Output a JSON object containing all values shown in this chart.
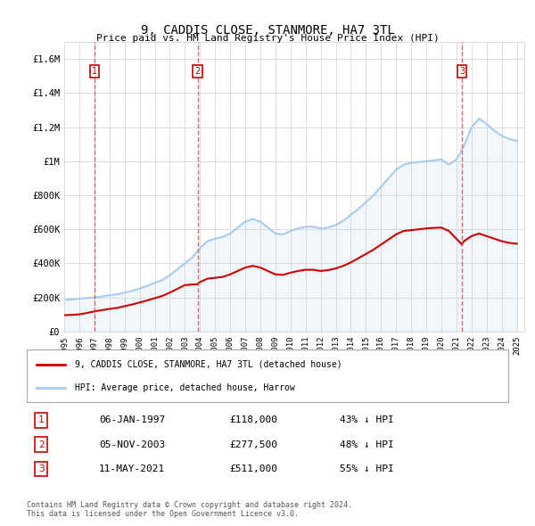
{
  "title": "9, CADDIS CLOSE, STANMORE, HA7 3TL",
  "subtitle": "Price paid vs. HM Land Registry's House Price Index (HPI)",
  "legend_line1": "9, CADDIS CLOSE, STANMORE, HA7 3TL (detached house)",
  "legend_line2": "HPI: Average price, detached house, Harrow",
  "footer1": "Contains HM Land Registry data © Crown copyright and database right 2024.",
  "footer2": "This data is licensed under the Open Government Licence v3.0.",
  "sales": [
    {
      "num": 1,
      "date": "06-JAN-1997",
      "price": 118000,
      "pct": "43%",
      "x_year": 1997.02
    },
    {
      "num": 2,
      "date": "05-NOV-2003",
      "price": 277500,
      "pct": "48%",
      "x_year": 2003.84
    },
    {
      "num": 3,
      "date": "11-MAY-2021",
      "price": 511000,
      "pct": "55%",
      "x_year": 2021.36
    }
  ],
  "xlim": [
    1995.0,
    2025.5
  ],
  "ylim": [
    0,
    1700000
  ],
  "yticks": [
    0,
    200000,
    400000,
    600000,
    800000,
    1000000,
    1200000,
    1400000,
    1600000
  ],
  "ytick_labels": [
    "£0",
    "£200K",
    "£400K",
    "£600K",
    "£800K",
    "£1M",
    "£1.2M",
    "£1.4M",
    "£1.6M"
  ],
  "xticks": [
    1995,
    1996,
    1997,
    1998,
    1999,
    2000,
    2001,
    2002,
    2003,
    2004,
    2005,
    2006,
    2007,
    2008,
    2009,
    2010,
    2011,
    2012,
    2013,
    2014,
    2015,
    2016,
    2017,
    2018,
    2019,
    2020,
    2021,
    2022,
    2023,
    2024,
    2025
  ],
  "red_color": "#cc0000",
  "blue_color": "#aaccee",
  "vline_color": "#dd4444",
  "grid_color": "#dddddd",
  "background_color": "#ffffff",
  "hpi_x": [
    1995.0,
    1995.5,
    1996.0,
    1996.5,
    1997.0,
    1997.5,
    1998.0,
    1998.5,
    1999.0,
    1999.5,
    2000.0,
    2000.5,
    2001.0,
    2001.5,
    2002.0,
    2002.5,
    2003.0,
    2003.5,
    2004.0,
    2004.5,
    2005.0,
    2005.5,
    2006.0,
    2006.5,
    2007.0,
    2007.5,
    2008.0,
    2008.5,
    2009.0,
    2009.5,
    2010.0,
    2010.5,
    2011.0,
    2011.5,
    2012.0,
    2012.5,
    2013.0,
    2013.5,
    2014.0,
    2014.5,
    2015.0,
    2015.5,
    2016.0,
    2016.5,
    2017.0,
    2017.5,
    2018.0,
    2018.5,
    2019.0,
    2019.5,
    2020.0,
    2020.5,
    2021.0,
    2021.5,
    2022.0,
    2022.5,
    2023.0,
    2023.5,
    2024.0,
    2024.5,
    2025.0
  ],
  "hpi_y": [
    185000,
    188000,
    192000,
    196000,
    200000,
    205000,
    212000,
    218000,
    228000,
    238000,
    252000,
    268000,
    285000,
    302000,
    330000,
    365000,
    400000,
    435000,
    490000,
    530000,
    545000,
    555000,
    575000,
    610000,
    645000,
    660000,
    645000,
    610000,
    575000,
    570000,
    590000,
    605000,
    615000,
    615000,
    605000,
    610000,
    625000,
    650000,
    685000,
    720000,
    760000,
    800000,
    850000,
    900000,
    950000,
    980000,
    990000,
    995000,
    1000000,
    1005000,
    1010000,
    980000,
    1010000,
    1090000,
    1200000,
    1250000,
    1220000,
    1180000,
    1150000,
    1130000,
    1120000
  ],
  "red_x": [
    1995.0,
    1995.5,
    1996.0,
    1996.5,
    1997.02,
    1997.5,
    1998.0,
    1998.5,
    1999.0,
    1999.5,
    2000.0,
    2000.5,
    2001.0,
    2001.5,
    2002.0,
    2002.5,
    2003.0,
    2003.84,
    2004.0,
    2004.5,
    2005.0,
    2005.5,
    2006.0,
    2006.5,
    2007.0,
    2007.5,
    2008.0,
    2008.5,
    2009.0,
    2009.5,
    2010.0,
    2010.5,
    2011.0,
    2011.5,
    2012.0,
    2012.5,
    2013.0,
    2013.5,
    2014.0,
    2014.5,
    2015.0,
    2015.5,
    2016.0,
    2016.5,
    2017.0,
    2017.5,
    2018.0,
    2018.5,
    2019.0,
    2019.5,
    2020.0,
    2020.5,
    2021.36,
    2021.5,
    2022.0,
    2022.5,
    2023.0,
    2023.5,
    2024.0,
    2024.5,
    2025.0
  ],
  "red_y": [
    95000,
    97000,
    100000,
    108000,
    118000,
    125000,
    132000,
    138000,
    148000,
    158000,
    170000,
    182000,
    195000,
    208000,
    228000,
    250000,
    272000,
    277500,
    290000,
    310000,
    315000,
    320000,
    335000,
    355000,
    375000,
    385000,
    375000,
    355000,
    335000,
    332000,
    345000,
    355000,
    362000,
    362000,
    355000,
    360000,
    370000,
    385000,
    405000,
    430000,
    455000,
    480000,
    510000,
    540000,
    570000,
    590000,
    595000,
    600000,
    605000,
    608000,
    610000,
    590000,
    511000,
    530000,
    560000,
    575000,
    560000,
    545000,
    530000,
    520000,
    515000
  ]
}
